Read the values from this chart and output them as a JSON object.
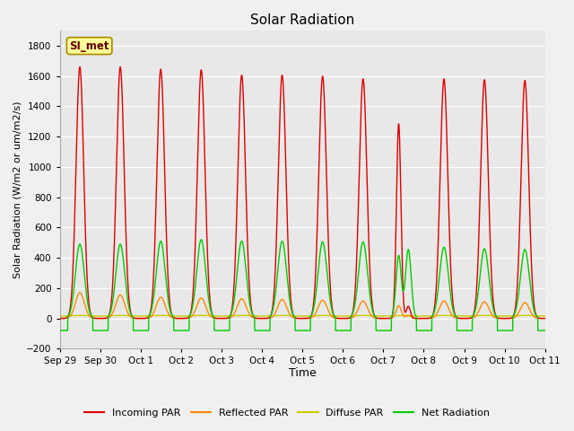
{
  "title": "Solar Radiation",
  "xlabel": "Time",
  "ylabel": "Solar Radiation (W/m2 or um/m2/s)",
  "ylim": [
    -200,
    1900
  ],
  "yticks": [
    -200,
    0,
    200,
    400,
    600,
    800,
    1000,
    1200,
    1400,
    1600,
    1800
  ],
  "fig_bg_color": "#f0f0f0",
  "axes_bg_color": "#e8e8e8",
  "grid_color": "#ffffff",
  "label_box_text": "SI_met",
  "label_box_bg": "#ffff99",
  "label_box_border": "#aa8800",
  "series": {
    "incoming_par": {
      "color": "#dd0000",
      "label": "Incoming PAR",
      "linewidth": 1.0
    },
    "reflected_par": {
      "color": "#ff8800",
      "label": "Reflected PAR",
      "linewidth": 1.0
    },
    "diffuse_par": {
      "color": "#cccc00",
      "label": "Diffuse PAR",
      "linewidth": 1.0
    },
    "net_radiation": {
      "color": "#00cc00",
      "label": "Net Radiation",
      "linewidth": 1.0
    }
  },
  "n_days": 12,
  "peaks_incoming": [
    1660,
    1660,
    1645,
    1640,
    1605,
    1605,
    1598,
    1580,
    1285,
    1580,
    1575,
    1570
  ],
  "peaks_reflected": [
    170,
    155,
    140,
    135,
    130,
    125,
    120,
    115,
    85,
    115,
    110,
    105
  ],
  "peaks_diffuse_flat": 15,
  "peaks_net": [
    490,
    490,
    510,
    520,
    510,
    510,
    505,
    505,
    415,
    470,
    460,
    455
  ],
  "night_net": -80,
  "oct8_truncated": true,
  "oct8_secondary_in": 455,
  "oct8_secondary_net": 455,
  "x_tick_labels": [
    "Sep 29",
    "Sep 30",
    "Oct 1",
    "Oct 2",
    "Oct 3",
    "Oct 4",
    "Oct 5",
    "Oct 6",
    "Oct 7",
    "Oct 8",
    "Oct 9",
    "Oct 10",
    "Oct 11"
  ],
  "x_tick_positions": [
    0,
    1,
    2,
    3,
    4,
    5,
    6,
    7,
    8,
    9,
    10,
    11,
    12
  ]
}
